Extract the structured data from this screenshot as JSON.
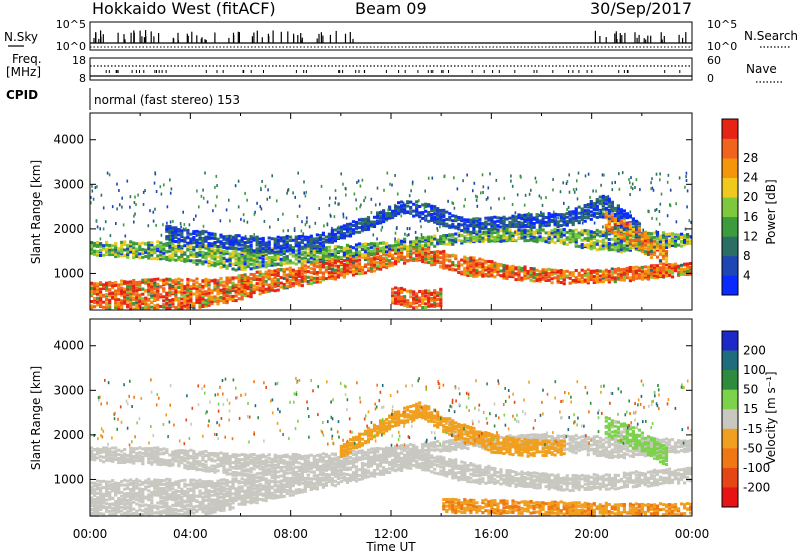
{
  "header": {
    "radar": "Hokkaido West (fitACF)",
    "beam": "Beam 09",
    "date": "30/Sep/2017"
  },
  "status_panel": {
    "nsky_label": "N.Sky",
    "nsearch_label": "N.Search",
    "noise_ticks": [
      "10^5",
      "10^0"
    ],
    "freq_label_1": "Freq.",
    "freq_label_2": "[MHz]",
    "freq_ticks": [
      "18",
      "8"
    ],
    "nave_label": "Nave",
    "nave_ticks": [
      "60",
      "0"
    ],
    "cpid_label": "CPID",
    "cpid_value": "normal (fast stereo) 153"
  },
  "axes": {
    "ylabel": "Slant Range [km]",
    "xlabel": "Time UT",
    "yticks": [
      "1000",
      "2000",
      "3000",
      "4000"
    ],
    "xticks": [
      "00:00",
      "04:00",
      "08:00",
      "12:00",
      "16:00",
      "20:00",
      "00:00"
    ]
  },
  "colorbars": {
    "power": {
      "label": "Power [dB]",
      "ticks": [
        "4",
        "8",
        "12",
        "16",
        "20",
        "24",
        "28"
      ],
      "colors": [
        "#0a2bff",
        "#1e46b4",
        "#2d6e64",
        "#3c9b3c",
        "#7dc83c",
        "#f0c81e",
        "#f5960a",
        "#f0641e",
        "#e62314"
      ]
    },
    "velocity": {
      "label": "Velocity [m s⁻¹]",
      "ticks": [
        "200",
        "100",
        "50",
        "15",
        "-15",
        "-50",
        "-100",
        "-200"
      ],
      "colors": [
        "#1c28c8",
        "#1e6c7c",
        "#2e8b3d",
        "#7cd24a",
        "#c8c8c0",
        "#f0a01e",
        "#f07814",
        "#e64614",
        "#e61414"
      ]
    }
  },
  "chart_data": [
    {
      "type": "heatmap",
      "title": "Power [dB]",
      "xlabel": "Time UT",
      "ylabel": "Slant Range [km]",
      "xlim_hours": [
        0,
        24
      ],
      "ylim_km": [
        180,
        4600
      ],
      "color_scale": [
        0,
        32
      ],
      "bands": [
        {
          "t": [
            0,
            2.5,
            5,
            7,
            9,
            11,
            13,
            15,
            17,
            19,
            21,
            23,
            24
          ],
          "r": [
            420,
            500,
            560,
            800,
            1000,
            1250,
            1450,
            1150,
            1000,
            900,
            950,
            1050,
            1100
          ],
          "w": [
            700,
            750,
            600,
            500,
            450,
            500,
            350,
            450,
            300,
            300,
            300,
            300,
            300
          ],
          "v": 27
        },
        {
          "t": [
            0,
            3,
            6,
            9,
            12,
            15,
            18,
            21,
            24
          ],
          "r": [
            1550,
            1500,
            1300,
            1400,
            1600,
            1800,
            1850,
            1700,
            1750
          ],
          "w": [
            300,
            400,
            500,
            300,
            250,
            250,
            300,
            500,
            250
          ],
          "v": 15
        },
        {
          "t": [
            3,
            5.5,
            7,
            9,
            11,
            12.5,
            13.5,
            15,
            17,
            19,
            20.5,
            22
          ],
          "r": [
            1900,
            1700,
            1600,
            1700,
            2100,
            2500,
            2350,
            2050,
            2150,
            2200,
            2500,
            1900
          ],
          "w": [
            350,
            300,
            400,
            300,
            300,
            300,
            400,
            300,
            300,
            300,
            500,
            400
          ],
          "v": 6
        },
        {
          "t": [
            12,
            13,
            14
          ],
          "r": [
            500,
            400,
            450
          ],
          "w": [
            400,
            400,
            400
          ],
          "v": 28
        },
        {
          "t": [
            20.5,
            21.8,
            23
          ],
          "r": [
            2200,
            1800,
            1300
          ],
          "w": [
            400,
            500,
            400
          ],
          "v": 24
        }
      ]
    },
    {
      "type": "heatmap",
      "title": "Velocity [m s⁻¹]",
      "xlabel": "Time UT",
      "ylabel": "Slant Range [km]",
      "xlim_hours": [
        0,
        24
      ],
      "ylim_km": [
        180,
        4600
      ],
      "color_scale": [
        -200,
        200
      ],
      "bands": [
        {
          "t": [
            0,
            2.5,
            5,
            7,
            9,
            11,
            13,
            15,
            17,
            19,
            21,
            23,
            24
          ],
          "r": [
            500,
            550,
            600,
            800,
            1000,
            1250,
            1450,
            1150,
            1000,
            900,
            950,
            1050,
            1100
          ],
          "w": [
            900,
            900,
            750,
            600,
            500,
            500,
            400,
            450,
            350,
            350,
            350,
            350,
            350
          ],
          "v": 0
        },
        {
          "t": [
            0,
            3,
            6,
            9,
            12,
            15,
            18,
            21,
            24
          ],
          "r": [
            1550,
            1500,
            1300,
            1400,
            1600,
            1800,
            1850,
            1700,
            1750
          ],
          "w": [
            300,
            400,
            500,
            300,
            250,
            250,
            300,
            500,
            250
          ],
          "v": 0
        },
        {
          "t": [
            10,
            12,
            13.2,
            14.5,
            16,
            17.5,
            19
          ],
          "r": [
            1600,
            2300,
            2550,
            2100,
            1800,
            1700,
            1700
          ],
          "w": [
            300,
            350,
            350,
            400,
            400,
            400,
            300
          ],
          "v": -45
        },
        {
          "t": [
            20.5,
            21.8,
            23
          ],
          "r": [
            2200,
            1900,
            1500
          ],
          "w": [
            400,
            500,
            400
          ],
          "v": 35
        },
        {
          "t": [
            14,
            18,
            21,
            24
          ],
          "r": [
            400,
            350,
            300,
            300
          ],
          "w": [
            300,
            300,
            300,
            300
          ],
          "v": -60
        }
      ]
    }
  ]
}
